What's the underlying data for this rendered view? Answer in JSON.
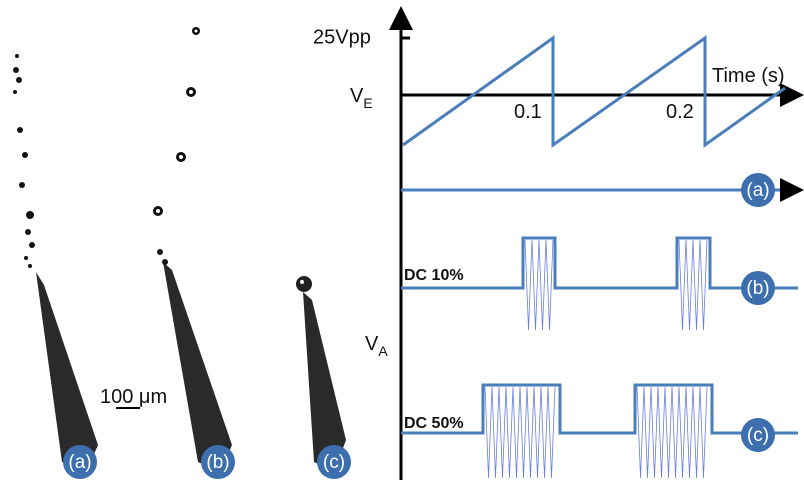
{
  "figure": {
    "panels": [
      "(a)",
      "(b)",
      "(c)"
    ],
    "scale_bar": "100 μm",
    "excitation": {
      "amplitude_label": "25Vpp",
      "axis_symbol": "V",
      "axis_subscript": "E",
      "x_label": "Time (s)",
      "x_ticks": [
        "0.1",
        "0.2"
      ]
    },
    "actuation": {
      "axis_symbol": "V",
      "axis_subscript": "A",
      "traces": [
        {
          "label": "(a)"
        },
        {
          "label": "(b)",
          "duty": "DC 10%"
        },
        {
          "label": "(c)",
          "duty": "DC 50%"
        }
      ]
    }
  }
}
